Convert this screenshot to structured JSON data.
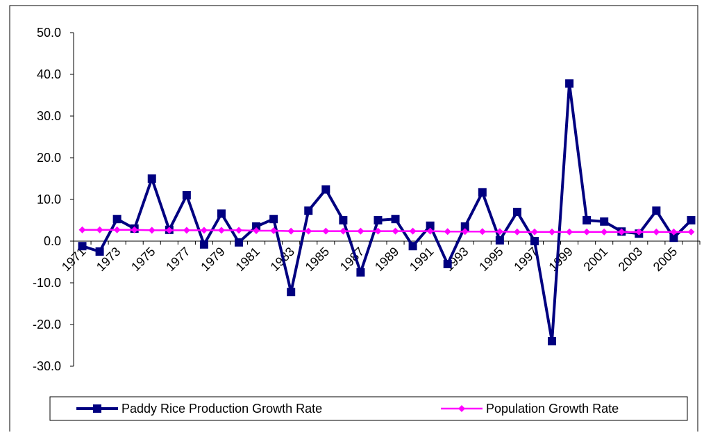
{
  "chart_data": {
    "type": "line",
    "categories": [
      "1971",
      null,
      "1973",
      null,
      "1975",
      null,
      "1977",
      null,
      "1979",
      null,
      "1981",
      null,
      "1983",
      null,
      "1985",
      null,
      "1987",
      null,
      "1989",
      null,
      "1991",
      null,
      "1993",
      null,
      "1995",
      null,
      "1997",
      null,
      "1999",
      null,
      "2001",
      null,
      "2003",
      null,
      "2005",
      null
    ],
    "series": [
      {
        "name": "Paddy Rice Production Growth Rate",
        "color": "#000080",
        "marker": "square",
        "values": [
          -1.2,
          -2.5,
          5.3,
          3.0,
          15.0,
          2.7,
          11.0,
          -0.8,
          6.6,
          -0.3,
          3.5,
          5.3,
          -12.2,
          7.3,
          12.4,
          5.0,
          -7.5,
          5.0,
          5.3,
          -1.2,
          3.7,
          -5.5,
          3.5,
          11.7,
          0.2,
          7.0,
          0.0,
          -24.0,
          37.8,
          5.0,
          4.7,
          2.3,
          1.8,
          7.3,
          0.8,
          5.0
        ]
      },
      {
        "name": "Population Growth Rate",
        "color": "#ff00ff",
        "marker": "diamond",
        "values": [
          2.7,
          2.7,
          2.7,
          2.7,
          2.6,
          2.6,
          2.6,
          2.6,
          2.6,
          2.6,
          2.5,
          2.5,
          2.4,
          2.4,
          2.4,
          2.4,
          2.4,
          2.4,
          2.4,
          2.4,
          2.4,
          2.3,
          2.3,
          2.3,
          2.3,
          2.2,
          2.2,
          2.2,
          2.2,
          2.2,
          2.2,
          2.2,
          2.2,
          2.2,
          2.2,
          2.2
        ]
      }
    ],
    "ylim": [
      -30,
      50
    ],
    "yticks": [
      {
        "value": -30,
        "label": "-30.0"
      },
      {
        "value": -20,
        "label": "-20.0"
      },
      {
        "value": -10,
        "label": "-10.0"
      },
      {
        "value": 0,
        "label": "0.0"
      },
      {
        "value": 10,
        "label": "10.0"
      },
      {
        "value": 20,
        "label": "20.0"
      },
      {
        "value": 30,
        "label": "30.0"
      },
      {
        "value": 40,
        "label": "40.0"
      },
      {
        "value": 50,
        "label": "50.0"
      }
    ],
    "grid": false,
    "legend": "bottom"
  }
}
